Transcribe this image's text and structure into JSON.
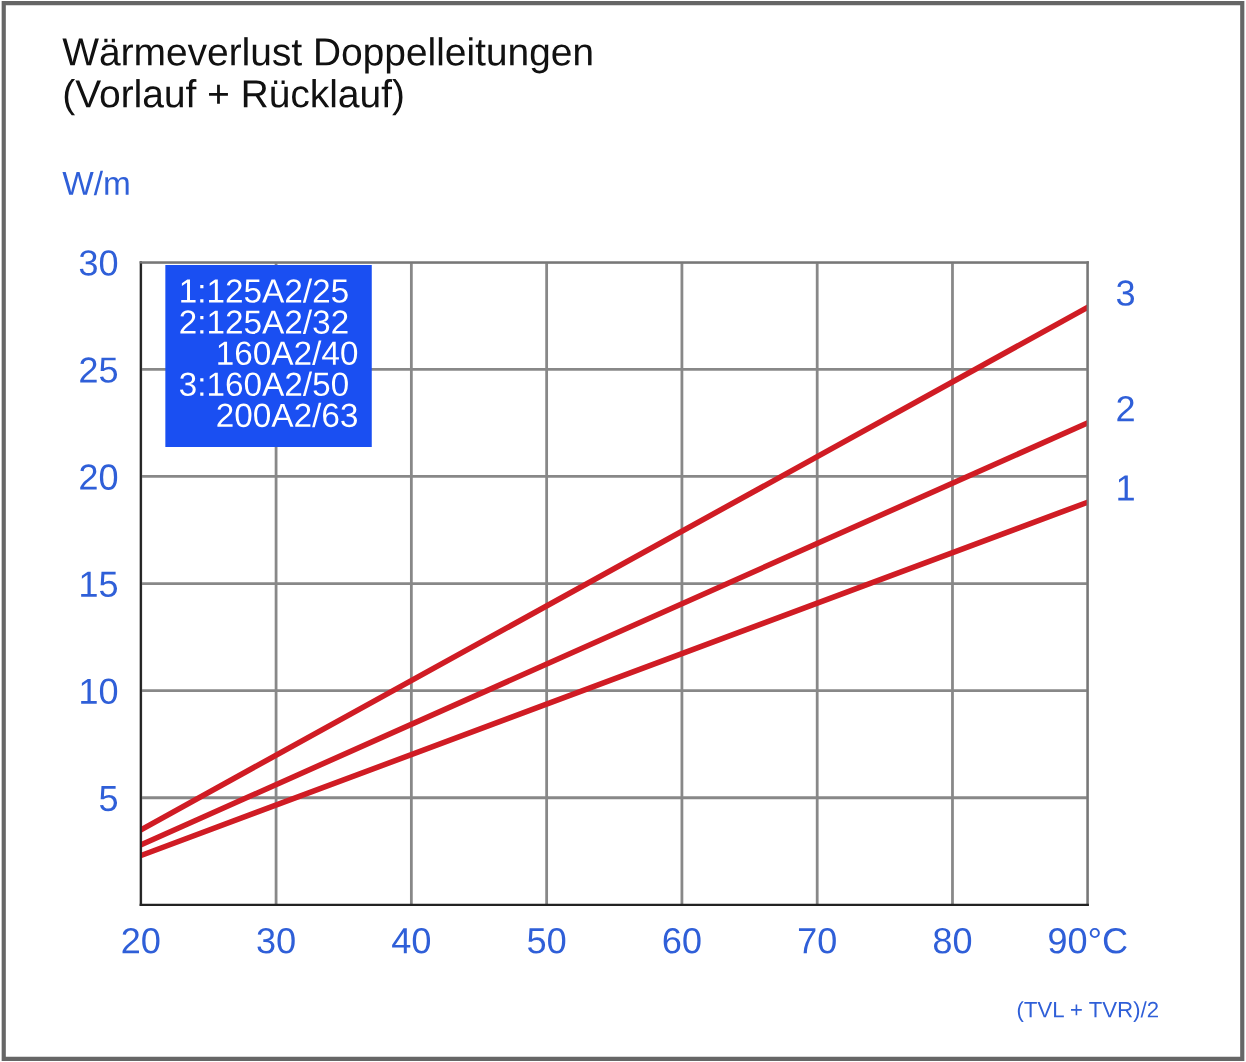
{
  "chart_data": {
    "type": "line",
    "title": "Wärmeverlust Doppelleitungen\n(Vorlauf + Rücklauf)",
    "ylabel": "W/m",
    "xlabel": "(TVL + TVR)/2",
    "x": [
      20,
      90
    ],
    "series": [
      {
        "name": "1",
        "color": "#d01c24",
        "values": [
          2.3,
          18.8
        ]
      },
      {
        "name": "2",
        "color": "#d01c24",
        "values": [
          2.8,
          22.5
        ]
      },
      {
        "name": "3",
        "color": "#d01c24",
        "values": [
          3.5,
          27.9
        ]
      }
    ],
    "annotations": [
      "1:125A2/25\n2:125A2/32\n    160A2/40\n3:160A2/50\n    200A2/63"
    ],
    "xlim": [
      20,
      90
    ],
    "ylim": [
      0,
      30
    ],
    "xticks": [
      20,
      30,
      40,
      50,
      60,
      70,
      80,
      {
        "value": 90,
        "label": "90°C"
      }
    ],
    "yticks": [
      5,
      10,
      15,
      20,
      25,
      30
    ],
    "grid": true,
    "legend": false,
    "marker": "none",
    "line_style": "solid"
  }
}
